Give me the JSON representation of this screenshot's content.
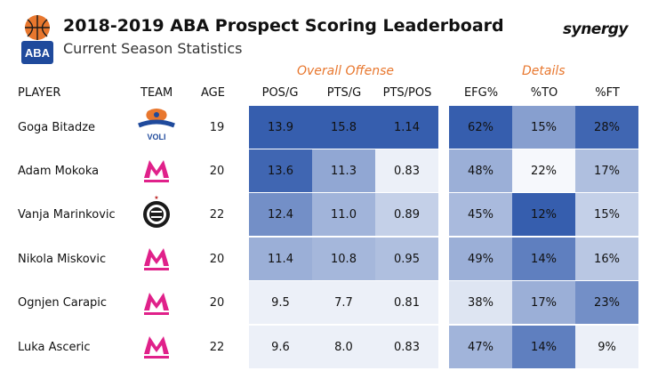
{
  "header": {
    "title": "2018-2019 ABA Prospect Scoring Leaderboard",
    "subtitle": "Current Season Statistics",
    "league_logo_text": "ABA",
    "brand": "synergy"
  },
  "groups": [
    {
      "label": "Overall Offense"
    },
    {
      "label": "Details"
    }
  ],
  "columns": [
    "PLAYER",
    "TEAM",
    "AGE",
    "POS/G",
    "PTS/G",
    "PTS/POS",
    "EFG%",
    "%TO",
    "%FT"
  ],
  "accent_color": "#e8772e",
  "rows": [
    {
      "player": "Goga Bitadze",
      "team_icon": "buducnost-voli-logo",
      "team_text": "VOLI",
      "age": "19",
      "values": [
        "13.9",
        "15.8",
        "1.14",
        "62%",
        "15%",
        "28%"
      ],
      "shades": [
        0.95,
        0.95,
        0.95,
        0.95,
        0.55,
        0.9
      ]
    },
    {
      "player": "Adam Mokoka",
      "team_icon": "mega-bemax-logo",
      "age": "20",
      "values": [
        "13.6",
        "11.3",
        "0.83",
        "48%",
        "22%",
        "17%"
      ],
      "shades": [
        0.9,
        0.5,
        0.05,
        0.45,
        0.0,
        0.35
      ]
    },
    {
      "player": "Vanja Marinkovic",
      "team_icon": "partizan-logo",
      "age": "22",
      "values": [
        "12.4",
        "11.0",
        "0.89",
        "45%",
        "12%",
        "15%"
      ],
      "shades": [
        0.65,
        0.42,
        0.25,
        0.38,
        0.95,
        0.25
      ]
    },
    {
      "player": "Nikola Miskovic",
      "team_icon": "mega-bemax-logo",
      "age": "20",
      "values": [
        "11.4",
        "10.8",
        "0.95",
        "49%",
        "14%",
        "16%"
      ],
      "shades": [
        0.45,
        0.4,
        0.35,
        0.45,
        0.75,
        0.3
      ]
    },
    {
      "player": "Ognjen Carapic",
      "team_icon": "mega-bemax-logo",
      "age": "20",
      "values": [
        "9.5",
        "7.7",
        "0.81",
        "38%",
        "17%",
        "23%"
      ],
      "shades": [
        0.05,
        0.05,
        0.05,
        0.12,
        0.45,
        0.65
      ]
    },
    {
      "player": "Luka Asceric",
      "team_icon": "mega-bemax-logo",
      "age": "22",
      "values": [
        "9.6",
        "8.0",
        "0.83",
        "47%",
        "14%",
        "9%"
      ],
      "shades": [
        0.05,
        0.05,
        0.05,
        0.42,
        0.75,
        0.05
      ]
    }
  ]
}
